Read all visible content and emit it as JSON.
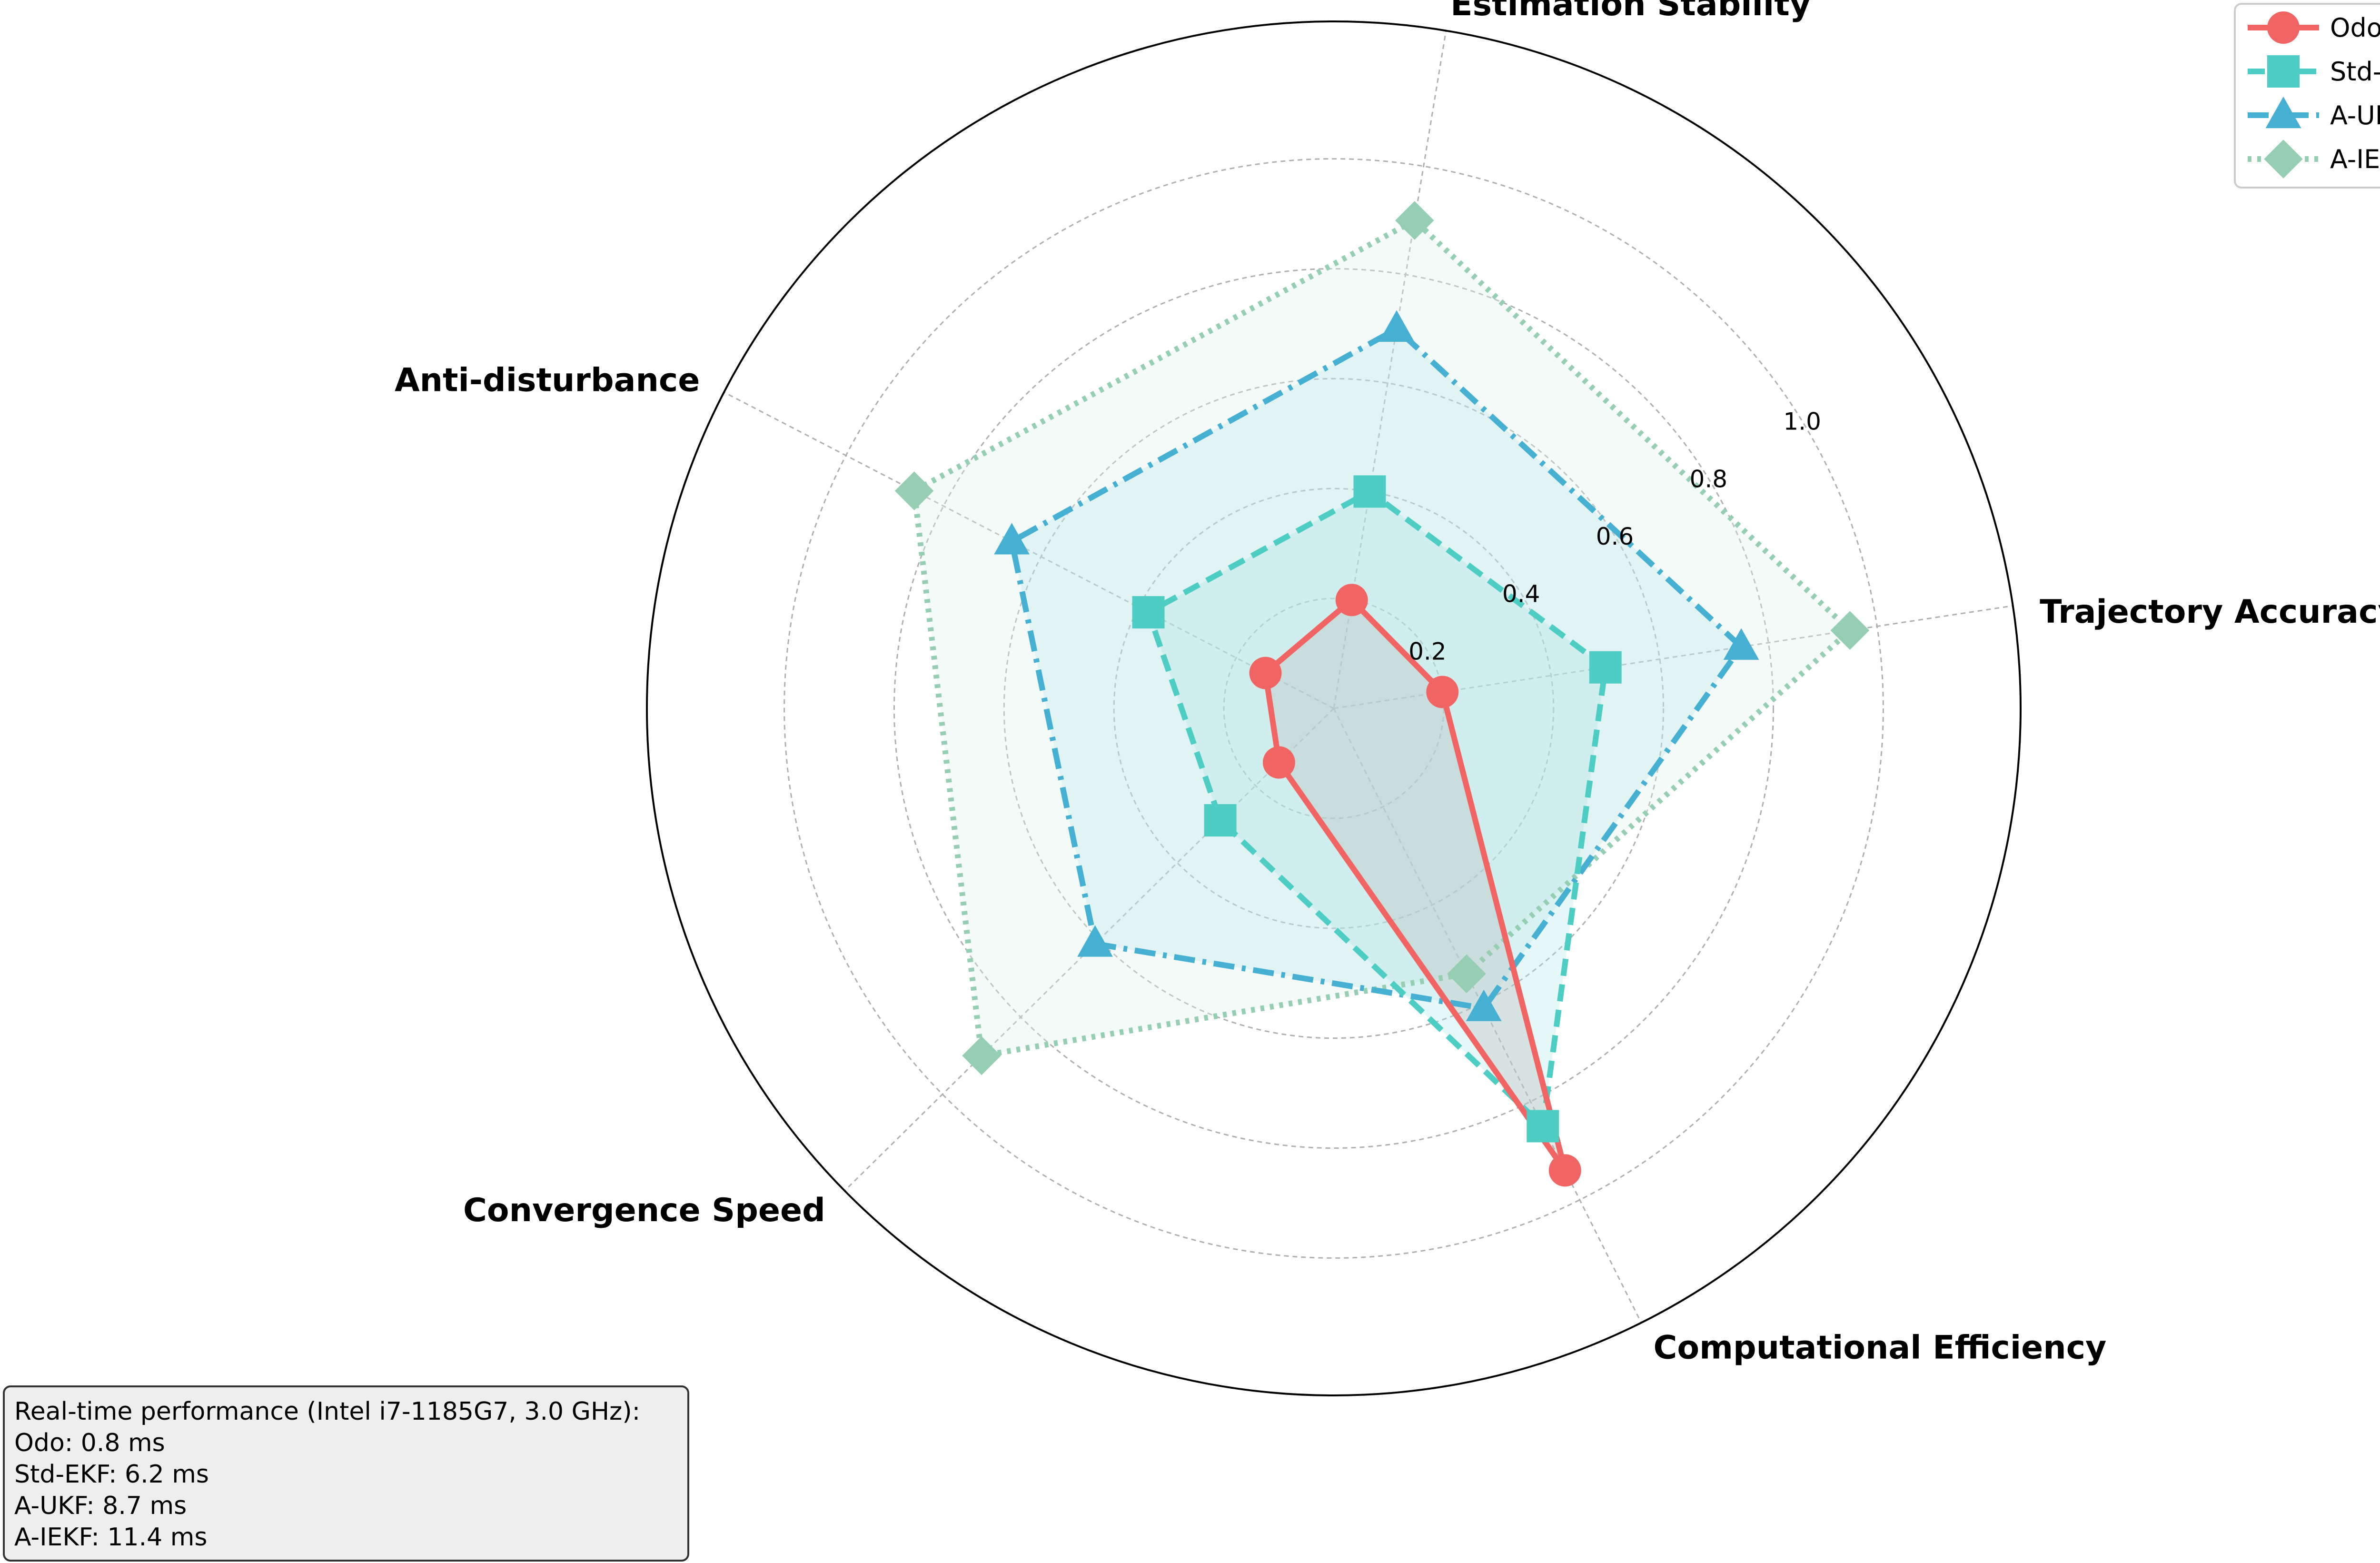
{
  "chart_data": {
    "type": "radar",
    "axes": [
      "Trajectory Accuracy",
      "Estimation Stability",
      "Anti-disturbance",
      "Convergence Speed",
      "Computational Efficiency"
    ],
    "radial_ticks": [
      "0.2",
      "0.4",
      "0.6",
      "0.8",
      "1.0"
    ],
    "radial_range": [
      0,
      1.25
    ],
    "grid": true,
    "legend_position": "top-right",
    "series": [
      {
        "name": "Odo",
        "values": [
          0.2,
          0.2,
          0.14,
          0.14,
          0.94
        ],
        "color": "#F16464",
        "line_style": "solid",
        "marker": "circle",
        "fill": "#BDBDBD"
      },
      {
        "name": "Std-EKF",
        "values": [
          0.5,
          0.4,
          0.38,
          0.29,
          0.85
        ],
        "color": "#4ECDC4",
        "line_style": "dashed",
        "marker": "square",
        "fill": "#A8E6E2"
      },
      {
        "name": "A-UKF",
        "values": [
          0.75,
          0.7,
          0.66,
          0.61,
          0.61
        ],
        "color": "#45B0D1",
        "line_style": "dashdot",
        "marker": "triangle",
        "fill": "#9FD5E8"
      },
      {
        "name": "A-IEKF",
        "values": [
          0.95,
          0.9,
          0.86,
          0.9,
          0.54
        ],
        "color": "#96CEB4",
        "line_style": "dotted",
        "marker": "diamond",
        "fill": "#DDF1EA"
      }
    ]
  },
  "note": {
    "lines": [
      "Real-time performance (Intel i7-1185G7, 3.0 GHz):",
      "Odo: 0.8 ms",
      "Std-EKF: 6.2 ms",
      "A-UKF: 8.7 ms",
      "A-IEKF: 11.4 ms"
    ]
  }
}
